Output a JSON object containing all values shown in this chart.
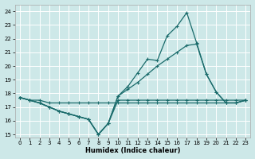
{
  "xlabel": "Humidex (Indice chaleur)",
  "bg_color": "#cde8e8",
  "line_color": "#1a6b6b",
  "grid_color": "#ffffff",
  "xlim": [
    -0.5,
    23.5
  ],
  "ylim": [
    14.8,
    24.5
  ],
  "yticks": [
    15,
    16,
    17,
    18,
    19,
    20,
    21,
    22,
    23,
    24
  ],
  "xticks": [
    0,
    1,
    2,
    3,
    4,
    5,
    6,
    7,
    8,
    9,
    10,
    11,
    12,
    13,
    14,
    15,
    16,
    17,
    18,
    19,
    20,
    21,
    22,
    23
  ],
  "line1": {
    "x": [
      0,
      1,
      2,
      3,
      4,
      5,
      6,
      7,
      8,
      9,
      10,
      11,
      12,
      13,
      14,
      15,
      16,
      17,
      18,
      19,
      20,
      21,
      22,
      23
    ],
    "y": [
      17.7,
      17.5,
      17.5,
      17.3,
      17.3,
      17.3,
      17.3,
      17.3,
      17.3,
      17.3,
      17.3,
      17.3,
      17.3,
      17.3,
      17.3,
      17.3,
      17.3,
      17.3,
      17.3,
      17.3,
      17.3,
      17.3,
      17.3,
      17.5
    ]
  },
  "line2": {
    "x": [
      0,
      1,
      2,
      3,
      4,
      5,
      6,
      7,
      8,
      9,
      10,
      11,
      12,
      13,
      14,
      15,
      16,
      17,
      18,
      19,
      20,
      21,
      22,
      23
    ],
    "y": [
      17.7,
      17.5,
      17.3,
      17.0,
      16.7,
      16.5,
      16.3,
      16.1,
      15.0,
      15.8,
      17.5,
      17.5,
      17.5,
      17.5,
      17.5,
      17.5,
      17.5,
      17.5,
      17.5,
      17.5,
      17.5,
      17.5,
      17.5,
      17.5
    ]
  },
  "line3": {
    "x": [
      0,
      1,
      2,
      3,
      4,
      5,
      6,
      7,
      8,
      9,
      10,
      11,
      12,
      13,
      14,
      15,
      16,
      17,
      18,
      19,
      20,
      21,
      22,
      23
    ],
    "y": [
      17.7,
      17.5,
      17.3,
      17.0,
      16.7,
      16.5,
      16.3,
      16.1,
      15.0,
      15.8,
      17.8,
      18.3,
      18.8,
      19.4,
      20.0,
      20.5,
      21.0,
      21.5,
      21.6,
      19.4,
      18.1,
      17.3,
      17.3,
      17.5
    ]
  },
  "line4": {
    "x": [
      0,
      1,
      2,
      3,
      4,
      5,
      6,
      7,
      8,
      9,
      10,
      11,
      12,
      13,
      14,
      15,
      16,
      17,
      18,
      19,
      20,
      21,
      22,
      23
    ],
    "y": [
      17.7,
      17.5,
      17.3,
      17.0,
      16.7,
      16.5,
      16.3,
      16.1,
      15.0,
      15.8,
      17.8,
      18.5,
      19.5,
      20.5,
      20.4,
      22.2,
      22.9,
      23.9,
      21.7,
      19.4,
      18.1,
      17.3,
      17.3,
      17.5
    ]
  }
}
